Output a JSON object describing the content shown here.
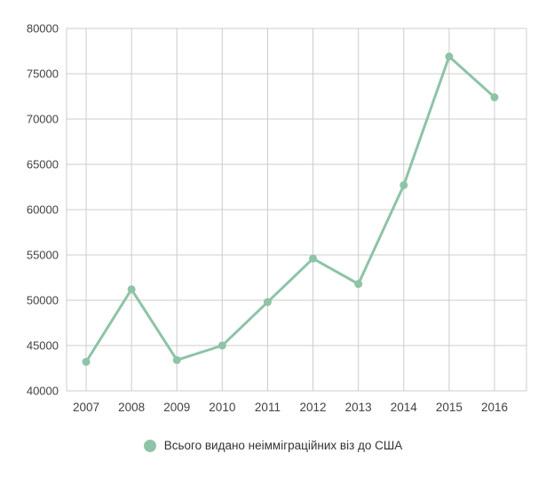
{
  "chart_data": {
    "type": "line",
    "x": [
      "2007",
      "2008",
      "2009",
      "2010",
      "2011",
      "2012",
      "2013",
      "2014",
      "2015",
      "2016"
    ],
    "series": [
      {
        "name": "Всього видано неімміграційних віз до США",
        "values": [
          43200,
          51200,
          43400,
          45000,
          49800,
          54600,
          51800,
          62700,
          76900,
          72400
        ],
        "color": "#8ec3a7"
      }
    ],
    "title": "",
    "xlabel": "",
    "ylabel": "",
    "ylim": [
      40000,
      80000
    ],
    "ytick_step": 5000,
    "yticks": [
      40000,
      45000,
      50000,
      55000,
      60000,
      65000,
      70000,
      75000,
      80000
    ],
    "grid": true,
    "legend_position": "bottom"
  },
  "legend": {
    "label": "Всього видано неімміграційних віз до США"
  },
  "colors": {
    "line": "#8ec3a7",
    "grid": "#cccccc",
    "axis_text": "#424242",
    "legend_text": "#333333"
  }
}
